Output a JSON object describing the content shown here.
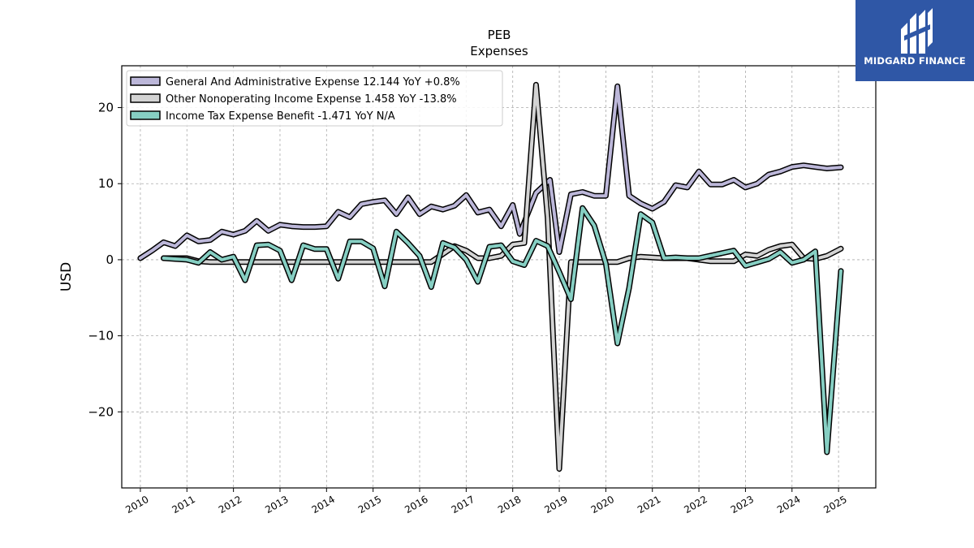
{
  "brand": {
    "name": "MIDGARD FINANCE",
    "background": "#2f57a6",
    "icon": "midgard-logo-icon"
  },
  "chart_data": {
    "type": "line",
    "title": "PEB",
    "subtitle": "Expenses",
    "xlabel": "",
    "ylabel": "USD",
    "xlim": [
      2009.6,
      2025.8
    ],
    "ylim": [
      -30,
      25.5
    ],
    "x_ticks": [
      2010,
      2011,
      2012,
      2013,
      2014,
      2015,
      2016,
      2017,
      2018,
      2019,
      2020,
      2021,
      2022,
      2023,
      2024,
      2025
    ],
    "y_ticks": [
      -20,
      -10,
      0,
      10,
      20
    ],
    "grid": true,
    "legend_position": "top-left",
    "series": [
      {
        "name": "General And Administrative Expense  12.144 YoY +0.8%",
        "color": "#bcb7d9",
        "points": [
          [
            2010.0,
            0.2
          ],
          [
            2010.25,
            1.2
          ],
          [
            2010.5,
            2.3
          ],
          [
            2010.75,
            1.8
          ],
          [
            2011.0,
            3.2
          ],
          [
            2011.25,
            2.4
          ],
          [
            2011.5,
            2.6
          ],
          [
            2011.75,
            3.7
          ],
          [
            2012.0,
            3.3
          ],
          [
            2012.25,
            3.8
          ],
          [
            2012.5,
            5.1
          ],
          [
            2012.75,
            3.8
          ],
          [
            2013.0,
            4.6
          ],
          [
            2013.25,
            4.4
          ],
          [
            2013.5,
            4.3
          ],
          [
            2013.75,
            4.3
          ],
          [
            2014.0,
            4.4
          ],
          [
            2014.25,
            6.3
          ],
          [
            2014.5,
            5.6
          ],
          [
            2014.75,
            7.3
          ],
          [
            2015.0,
            7.6
          ],
          [
            2015.25,
            7.8
          ],
          [
            2015.5,
            6.0
          ],
          [
            2015.75,
            8.2
          ],
          [
            2016.0,
            6.0
          ],
          [
            2016.25,
            7.0
          ],
          [
            2016.5,
            6.6
          ],
          [
            2016.75,
            7.1
          ],
          [
            2017.0,
            8.5
          ],
          [
            2017.25,
            6.2
          ],
          [
            2017.5,
            6.6
          ],
          [
            2017.75,
            4.4
          ],
          [
            2018.0,
            7.2
          ],
          [
            2018.15,
            3.4
          ],
          [
            2018.5,
            8.8
          ],
          [
            2018.8,
            10.5
          ],
          [
            2019.0,
            1.0
          ],
          [
            2019.25,
            8.6
          ],
          [
            2019.5,
            8.9
          ],
          [
            2019.75,
            8.4
          ],
          [
            2020.0,
            8.4
          ],
          [
            2020.25,
            22.8
          ],
          [
            2020.5,
            8.4
          ],
          [
            2020.75,
            7.4
          ],
          [
            2021.0,
            6.7
          ],
          [
            2021.25,
            7.6
          ],
          [
            2021.5,
            9.8
          ],
          [
            2021.75,
            9.5
          ],
          [
            2022.0,
            11.6
          ],
          [
            2022.25,
            9.9
          ],
          [
            2022.5,
            9.9
          ],
          [
            2022.75,
            10.5
          ],
          [
            2023.0,
            9.5
          ],
          [
            2023.25,
            10.0
          ],
          [
            2023.5,
            11.2
          ],
          [
            2023.75,
            11.6
          ],
          [
            2024.0,
            12.2
          ],
          [
            2024.25,
            12.4
          ],
          [
            2024.5,
            12.2
          ],
          [
            2024.75,
            12.0
          ],
          [
            2025.05,
            12.144
          ]
        ]
      },
      {
        "name": "Other Nonoperating Income Expense  1.458 YoY -13.8%",
        "color": "#d3d3d3",
        "points": [
          [
            2010.5,
            0.2
          ],
          [
            2011.0,
            0.2
          ],
          [
            2011.25,
            -0.2
          ],
          [
            2011.5,
            -0.3
          ],
          [
            2011.75,
            -0.3
          ],
          [
            2012.0,
            -0.3
          ],
          [
            2012.25,
            -0.3
          ],
          [
            2012.5,
            -0.3
          ],
          [
            2012.75,
            -0.3
          ],
          [
            2013.0,
            -0.3
          ],
          [
            2013.25,
            -0.3
          ],
          [
            2013.5,
            -0.3
          ],
          [
            2013.75,
            -0.3
          ],
          [
            2014.0,
            -0.3
          ],
          [
            2014.25,
            -0.3
          ],
          [
            2014.5,
            -0.3
          ],
          [
            2014.75,
            -0.3
          ],
          [
            2015.0,
            -0.3
          ],
          [
            2015.25,
            -0.3
          ],
          [
            2015.5,
            -0.3
          ],
          [
            2015.75,
            -0.3
          ],
          [
            2016.0,
            -0.3
          ],
          [
            2016.25,
            -0.3
          ],
          [
            2016.75,
            1.8
          ],
          [
            2017.0,
            1.2
          ],
          [
            2017.25,
            0.2
          ],
          [
            2017.5,
            0.2
          ],
          [
            2017.75,
            0.5
          ],
          [
            2018.0,
            2.0
          ],
          [
            2018.25,
            2.2
          ],
          [
            2018.5,
            23.0
          ],
          [
            2018.75,
            5.5
          ],
          [
            2019.0,
            -27.5
          ],
          [
            2019.25,
            -0.3
          ],
          [
            2019.5,
            -0.3
          ],
          [
            2019.75,
            -0.3
          ],
          [
            2020.0,
            -0.3
          ],
          [
            2020.25,
            -0.3
          ],
          [
            2020.5,
            0.2
          ],
          [
            2020.75,
            0.4
          ],
          [
            2021.0,
            0.3
          ],
          [
            2021.25,
            0.2
          ],
          [
            2021.5,
            0.2
          ],
          [
            2021.75,
            0.2
          ],
          [
            2022.0,
            0.0
          ],
          [
            2022.25,
            -0.2
          ],
          [
            2022.5,
            -0.2
          ],
          [
            2022.75,
            -0.2
          ],
          [
            2023.0,
            0.7
          ],
          [
            2023.25,
            0.5
          ],
          [
            2023.5,
            1.3
          ],
          [
            2023.75,
            1.8
          ],
          [
            2024.0,
            2.0
          ],
          [
            2024.25,
            0.2
          ],
          [
            2024.5,
            0.1
          ],
          [
            2024.75,
            0.5
          ],
          [
            2025.05,
            1.458
          ]
        ]
      },
      {
        "name": "Income Tax Expense Benefit  -1.471 YoY N/A",
        "color": "#86cfc3",
        "points": [
          [
            2010.5,
            0.2
          ],
          [
            2010.75,
            0.1
          ],
          [
            2011.0,
            0.0
          ],
          [
            2011.25,
            -0.4
          ],
          [
            2011.5,
            1.0
          ],
          [
            2011.75,
            0.0
          ],
          [
            2012.0,
            0.4
          ],
          [
            2012.25,
            -2.7
          ],
          [
            2012.5,
            1.9
          ],
          [
            2012.75,
            2.0
          ],
          [
            2013.0,
            1.2
          ],
          [
            2013.25,
            -2.7
          ],
          [
            2013.5,
            1.9
          ],
          [
            2013.75,
            1.4
          ],
          [
            2014.0,
            1.4
          ],
          [
            2014.25,
            -2.5
          ],
          [
            2014.5,
            2.4
          ],
          [
            2014.75,
            2.4
          ],
          [
            2015.0,
            1.5
          ],
          [
            2015.25,
            -3.5
          ],
          [
            2015.5,
            3.7
          ],
          [
            2015.75,
            2.2
          ],
          [
            2016.0,
            0.5
          ],
          [
            2016.25,
            -3.6
          ],
          [
            2016.5,
            2.2
          ],
          [
            2016.75,
            1.6
          ],
          [
            2017.0,
            0.0
          ],
          [
            2017.25,
            -2.9
          ],
          [
            2017.5,
            1.7
          ],
          [
            2017.75,
            1.9
          ],
          [
            2018.0,
            -0.2
          ],
          [
            2018.25,
            -0.7
          ],
          [
            2018.5,
            2.5
          ],
          [
            2018.75,
            1.8
          ],
          [
            2019.0,
            -1.6
          ],
          [
            2019.25,
            -5.2
          ],
          [
            2019.5,
            6.8
          ],
          [
            2019.75,
            4.5
          ],
          [
            2020.0,
            -0.5
          ],
          [
            2020.25,
            -11.0
          ],
          [
            2020.5,
            -3.7
          ],
          [
            2020.75,
            6.0
          ],
          [
            2021.0,
            4.9
          ],
          [
            2021.25,
            0.2
          ],
          [
            2021.5,
            0.3
          ],
          [
            2021.75,
            0.2
          ],
          [
            2022.0,
            0.2
          ],
          [
            2022.75,
            1.2
          ],
          [
            2023.0,
            -0.8
          ],
          [
            2023.5,
            0.1
          ],
          [
            2023.75,
            1.0
          ],
          [
            2024.0,
            -0.4
          ],
          [
            2024.25,
            0.0
          ],
          [
            2024.5,
            1.1
          ],
          [
            2024.75,
            -25.3
          ],
          [
            2025.05,
            -1.471
          ]
        ]
      }
    ]
  }
}
